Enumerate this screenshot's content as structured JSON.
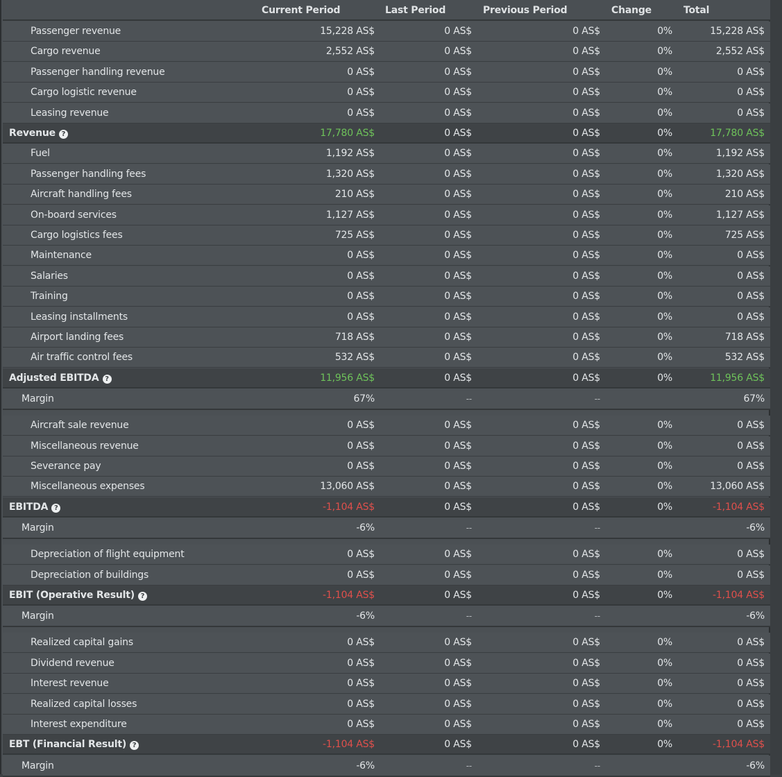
{
  "columns": {
    "current": "Current Period",
    "last": "Last Period",
    "previous": "Previous Period",
    "change": "Change",
    "total": "Total"
  },
  "colors": {
    "positive": "#6ec25a",
    "negative": "#e0504c"
  },
  "icons": {
    "help": "question-circle-icon",
    "help_glyph": "?"
  },
  "rows": [
    {
      "type": "item",
      "label": "Passenger revenue",
      "current": "15,228 AS$",
      "last": "0 AS$",
      "previous": "0 AS$",
      "change": "0%",
      "total": "15,228 AS$"
    },
    {
      "type": "item",
      "label": "Cargo revenue",
      "current": "2,552 AS$",
      "last": "0 AS$",
      "previous": "0 AS$",
      "change": "0%",
      "total": "2,552 AS$"
    },
    {
      "type": "item",
      "label": "Passenger handling revenue",
      "current": "0 AS$",
      "last": "0 AS$",
      "previous": "0 AS$",
      "change": "0%",
      "total": "0 AS$"
    },
    {
      "type": "item",
      "label": "Cargo logistic revenue",
      "current": "0 AS$",
      "last": "0 AS$",
      "previous": "0 AS$",
      "change": "0%",
      "total": "0 AS$"
    },
    {
      "type": "item",
      "label": "Leasing revenue",
      "current": "0 AS$",
      "last": "0 AS$",
      "previous": "0 AS$",
      "change": "0%",
      "total": "0 AS$"
    },
    {
      "type": "total",
      "label": "Revenue",
      "help": true,
      "tone": "pos",
      "current": "17,780 AS$",
      "last": "0 AS$",
      "previous": "0 AS$",
      "change": "0%",
      "total": "17,780 AS$"
    },
    {
      "type": "item",
      "label": "Fuel",
      "current": "1,192 AS$",
      "last": "0 AS$",
      "previous": "0 AS$",
      "change": "0%",
      "total": "1,192 AS$"
    },
    {
      "type": "item",
      "label": "Passenger handling fees",
      "current": "1,320 AS$",
      "last": "0 AS$",
      "previous": "0 AS$",
      "change": "0%",
      "total": "1,320 AS$"
    },
    {
      "type": "item",
      "label": "Aircraft handling fees",
      "current": "210 AS$",
      "last": "0 AS$",
      "previous": "0 AS$",
      "change": "0%",
      "total": "210 AS$"
    },
    {
      "type": "item",
      "label": "On-board services",
      "current": "1,127 AS$",
      "last": "0 AS$",
      "previous": "0 AS$",
      "change": "0%",
      "total": "1,127 AS$"
    },
    {
      "type": "item",
      "label": "Cargo logistics fees",
      "current": "725 AS$",
      "last": "0 AS$",
      "previous": "0 AS$",
      "change": "0%",
      "total": "725 AS$"
    },
    {
      "type": "item",
      "label": "Maintenance",
      "current": "0 AS$",
      "last": "0 AS$",
      "previous": "0 AS$",
      "change": "0%",
      "total": "0 AS$"
    },
    {
      "type": "item",
      "label": "Salaries",
      "current": "0 AS$",
      "last": "0 AS$",
      "previous": "0 AS$",
      "change": "0%",
      "total": "0 AS$"
    },
    {
      "type": "item",
      "label": "Training",
      "current": "0 AS$",
      "last": "0 AS$",
      "previous": "0 AS$",
      "change": "0%",
      "total": "0 AS$"
    },
    {
      "type": "item",
      "label": "Leasing installments",
      "current": "0 AS$",
      "last": "0 AS$",
      "previous": "0 AS$",
      "change": "0%",
      "total": "0 AS$"
    },
    {
      "type": "item",
      "label": "Airport landing fees",
      "current": "718 AS$",
      "last": "0 AS$",
      "previous": "0 AS$",
      "change": "0%",
      "total": "718 AS$"
    },
    {
      "type": "item",
      "label": "Air traffic control fees",
      "current": "532 AS$",
      "last": "0 AS$",
      "previous": "0 AS$",
      "change": "0%",
      "total": "532 AS$"
    },
    {
      "type": "total",
      "label": "Adjusted EBITDA",
      "help": true,
      "tone": "pos",
      "current": "11,956 AS$",
      "last": "0 AS$",
      "previous": "0 AS$",
      "change": "0%",
      "total": "11,956 AS$"
    },
    {
      "type": "margin",
      "label": "Margin",
      "current": "67%",
      "last": "--",
      "previous": "--",
      "change": "",
      "total": "67%"
    },
    {
      "type": "item",
      "label": "Aircraft sale revenue",
      "current": "0 AS$",
      "last": "0 AS$",
      "previous": "0 AS$",
      "change": "0%",
      "total": "0 AS$"
    },
    {
      "type": "item",
      "label": "Miscellaneous revenue",
      "current": "0 AS$",
      "last": "0 AS$",
      "previous": "0 AS$",
      "change": "0%",
      "total": "0 AS$"
    },
    {
      "type": "item",
      "label": "Severance pay",
      "current": "0 AS$",
      "last": "0 AS$",
      "previous": "0 AS$",
      "change": "0%",
      "total": "0 AS$"
    },
    {
      "type": "item",
      "label": "Miscellaneous expenses",
      "current": "13,060 AS$",
      "last": "0 AS$",
      "previous": "0 AS$",
      "change": "0%",
      "total": "13,060 AS$"
    },
    {
      "type": "total",
      "label": "EBITDA",
      "help": true,
      "tone": "neg",
      "current": "-1,104 AS$",
      "last": "0 AS$",
      "previous": "0 AS$",
      "change": "0%",
      "total": "-1,104 AS$"
    },
    {
      "type": "margin",
      "label": "Margin",
      "current": "-6%",
      "last": "--",
      "previous": "--",
      "change": "",
      "total": "-6%"
    },
    {
      "type": "item",
      "label": "Depreciation of flight equipment",
      "current": "0 AS$",
      "last": "0 AS$",
      "previous": "0 AS$",
      "change": "0%",
      "total": "0 AS$"
    },
    {
      "type": "item",
      "label": "Depreciation of buildings",
      "current": "0 AS$",
      "last": "0 AS$",
      "previous": "0 AS$",
      "change": "0%",
      "total": "0 AS$"
    },
    {
      "type": "total",
      "label": "EBIT (Operative Result)",
      "help": true,
      "tone": "neg",
      "current": "-1,104 AS$",
      "last": "0 AS$",
      "previous": "0 AS$",
      "change": "0%",
      "total": "-1,104 AS$"
    },
    {
      "type": "margin",
      "label": "Margin",
      "current": "-6%",
      "last": "--",
      "previous": "--",
      "change": "",
      "total": "-6%"
    },
    {
      "type": "item",
      "label": "Realized capital gains",
      "current": "0 AS$",
      "last": "0 AS$",
      "previous": "0 AS$",
      "change": "0%",
      "total": "0 AS$"
    },
    {
      "type": "item",
      "label": "Dividend revenue",
      "current": "0 AS$",
      "last": "0 AS$",
      "previous": "0 AS$",
      "change": "0%",
      "total": "0 AS$"
    },
    {
      "type": "item",
      "label": "Interest revenue",
      "current": "0 AS$",
      "last": "0 AS$",
      "previous": "0 AS$",
      "change": "0%",
      "total": "0 AS$"
    },
    {
      "type": "item",
      "label": "Realized capital losses",
      "current": "0 AS$",
      "last": "0 AS$",
      "previous": "0 AS$",
      "change": "0%",
      "total": "0 AS$"
    },
    {
      "type": "item",
      "label": "Interest expenditure",
      "current": "0 AS$",
      "last": "0 AS$",
      "previous": "0 AS$",
      "change": "0%",
      "total": "0 AS$"
    },
    {
      "type": "total",
      "label": "EBT (Financial Result)",
      "help": true,
      "tone": "neg",
      "current": "-1,104 AS$",
      "last": "0 AS$",
      "previous": "0 AS$",
      "change": "0%",
      "total": "-1,104 AS$"
    },
    {
      "type": "margin",
      "label": "Margin",
      "current": "-6%",
      "last": "--",
      "previous": "--",
      "change": "",
      "total": "-6%"
    }
  ]
}
